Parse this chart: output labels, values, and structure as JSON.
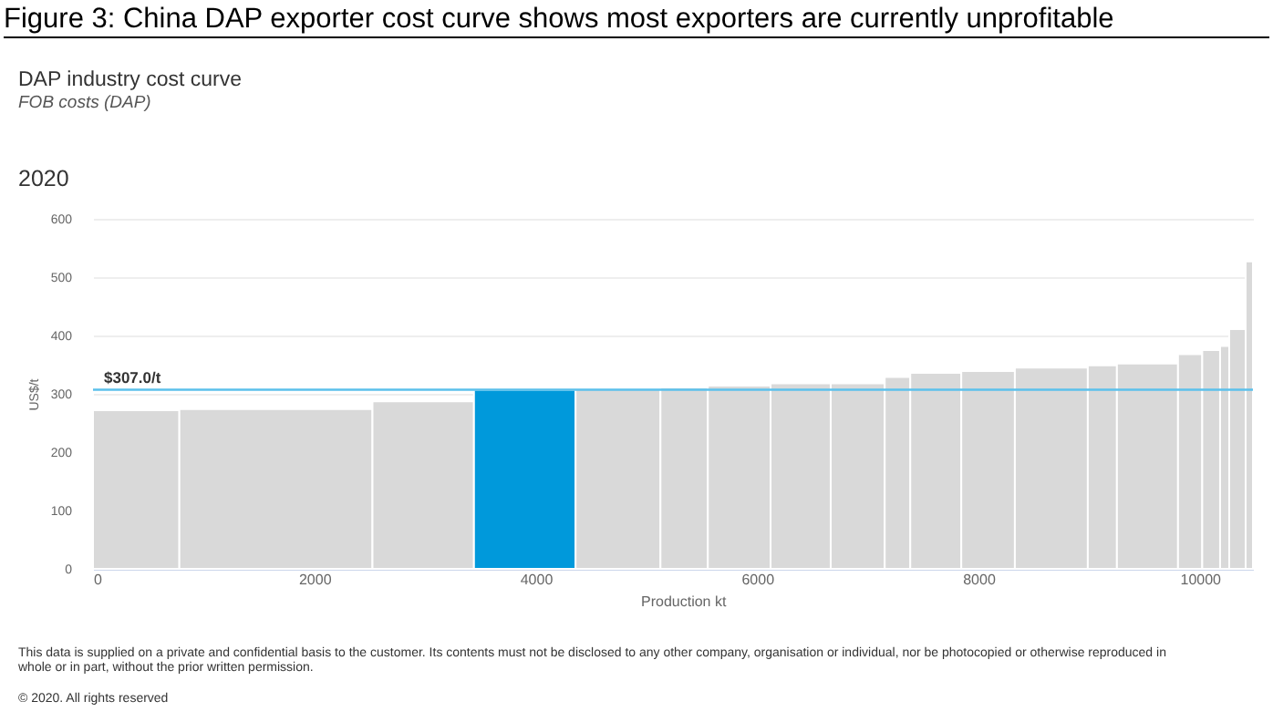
{
  "chart_data": {
    "type": "histogram",
    "title": "Figure 3: China DAP exporter cost curve shows most exporters are currently unprofitable",
    "subtitle": "DAP industry cost curve",
    "annotations": [
      "FOB costs (DAP)",
      "2020",
      "This data is supplied on a private and confidential basis to the customer. Its contents must not be disclosed to any other company, organisation or individual, nor be photocopied or otherwise reproduced in whole or in part, without the prior written permission.",
      "© 2020. All rights reserved"
    ],
    "xlabel": "Production kt",
    "ylabel": "US$/t",
    "bins": [
      0,
      780,
      2525,
      3442,
      4360,
      5127,
      5555,
      6122,
      6665,
      7153,
      7384,
      7845,
      8329,
      8988,
      9251,
      9803,
      10022,
      10183,
      10266,
      10414,
      10480
    ],
    "values": [
      272,
      274,
      287,
      307,
      308,
      311,
      314,
      318,
      318,
      329,
      336,
      339,
      345,
      349,
      352,
      368,
      375,
      382,
      411,
      527
    ],
    "colors": [
      "#d9d9d9",
      "#d9d9d9",
      "#d9d9d9",
      "#0099db",
      "#d9d9d9",
      "#d9d9d9",
      "#d9d9d9",
      "#d9d9d9",
      "#d9d9d9",
      "#d9d9d9",
      "#d9d9d9",
      "#d9d9d9",
      "#d9d9d9",
      "#d9d9d9",
      "#d9d9d9",
      "#d9d9d9",
      "#d9d9d9",
      "#d9d9d9",
      "#d9d9d9",
      "#d9d9d9"
    ],
    "xlim": [
      0,
      10480
    ],
    "xticks": [
      0,
      2000,
      4000,
      6000,
      8000,
      10000
    ],
    "ylim": [
      0,
      600
    ],
    "yticks": [
      0,
      100,
      200,
      300,
      400,
      500,
      600
    ],
    "grid": "y",
    "ref_lines": [
      {
        "axis": "y",
        "value": 307,
        "label": "$307.0/t",
        "color": "#5bc0eb"
      }
    ]
  }
}
